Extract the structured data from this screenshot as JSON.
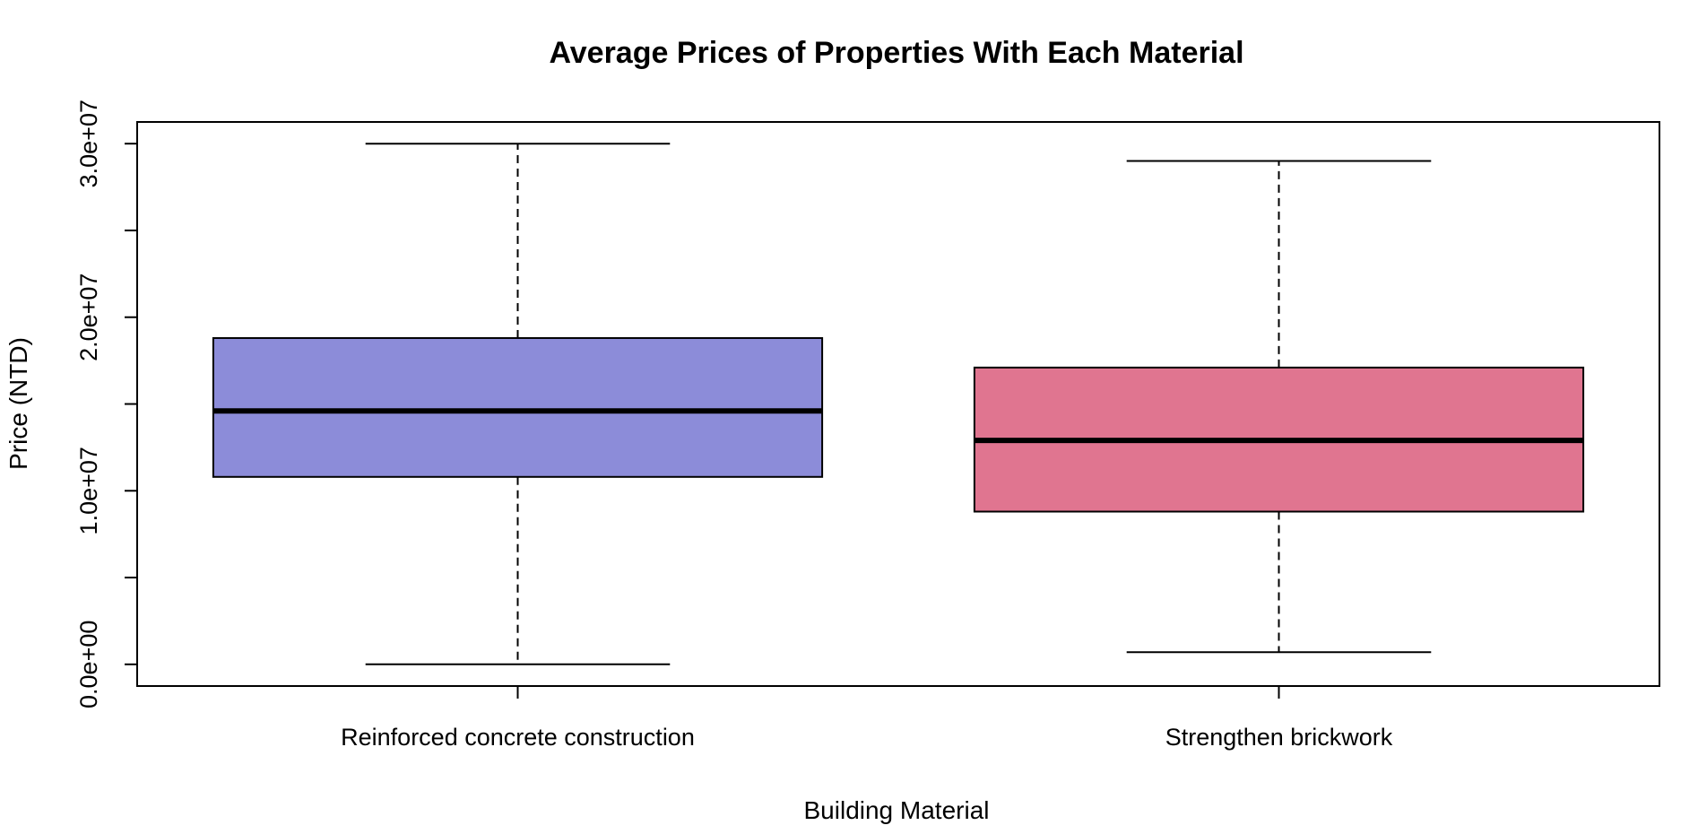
{
  "chart_data": {
    "type": "boxplot",
    "title": "Average Prices of Properties With Each Material",
    "xlabel": "Building Material",
    "ylabel": "Price (NTD)",
    "ylim": [
      -1250000,
      31250000
    ],
    "y_ticks": [
      0,
      5000000,
      10000000,
      15000000,
      20000000,
      25000000,
      30000000
    ],
    "y_tick_labels": [
      "0.0e+00",
      "",
      "1.0e+07",
      "",
      "2.0e+07",
      "",
      "3.0e+07"
    ],
    "categories": [
      "Reinforced concrete construction",
      "Strengthen brickwork"
    ],
    "series": [
      {
        "category": "Reinforced concrete construction",
        "whisker_low": 0,
        "q1": 10800000,
        "median": 14600000,
        "q3": 18800000,
        "whisker_high": 30000000,
        "color": "#8c8cd9"
      },
      {
        "category": "Strengthen brickwork",
        "whisker_low": 700000,
        "q1": 8800000,
        "median": 12900000,
        "q3": 17100000,
        "whisker_high": 29000000,
        "color": "#e07590"
      }
    ],
    "grid": false,
    "legend": "none"
  }
}
